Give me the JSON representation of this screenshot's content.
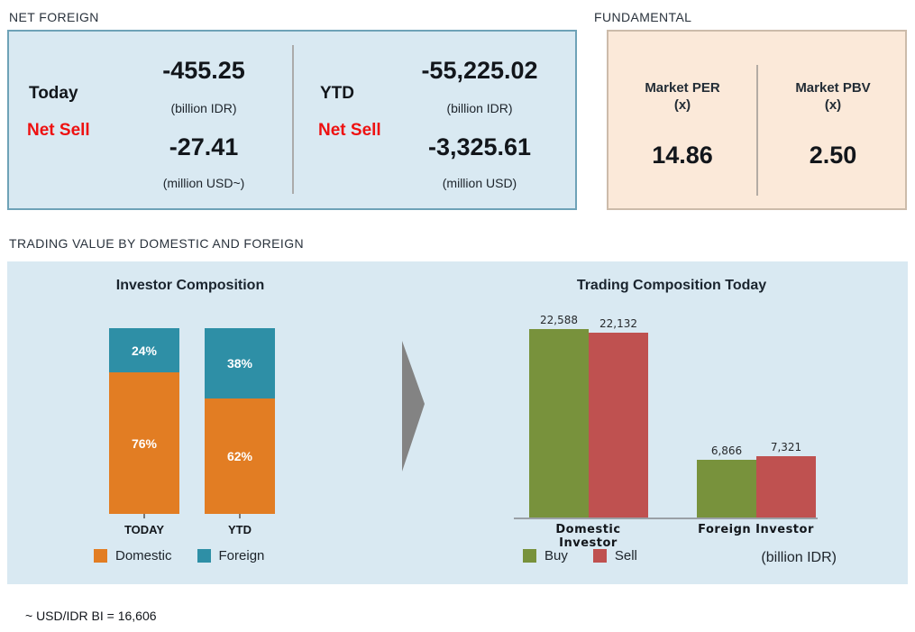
{
  "colors": {
    "panel_blue_bg": "#d9e9f2",
    "panel_blue_border": "#6ea2b7",
    "panel_peach_bg": "#fbe9d9",
    "panel_peach_border": "#ccbbaa",
    "net_sell_red": "#ee1111",
    "domestic_orange": "#e27d23",
    "foreign_teal": "#2e8fa6",
    "buy_green": "#78923c",
    "sell_red": "#bf5150",
    "arrow_gray": "#838383"
  },
  "net_foreign": {
    "section_title": "NET FOREIGN",
    "today": {
      "period_label": "Today",
      "direction_label": "Net Sell",
      "idr_value": "-455.25",
      "idr_unit": "(billion IDR)",
      "usd_value": "-27.41",
      "usd_unit": "(million USD~)"
    },
    "ytd": {
      "period_label": "YTD",
      "direction_label": "Net Sell",
      "idr_value": "-55,225.02",
      "idr_unit": "(billion IDR)",
      "usd_value": "-3,325.61",
      "usd_unit": "(million USD)"
    }
  },
  "fundamental": {
    "section_title": "FUNDAMENTAL",
    "per": {
      "label": "Market PER",
      "unit": "(x)",
      "value": "14.86"
    },
    "pbv": {
      "label": "Market PBV",
      "unit": "(x)",
      "value": "2.50"
    }
  },
  "trading": {
    "section_title": "TRADING VALUE BY DOMESTIC AND FOREIGN",
    "footnote": "~ USD/IDR BI = 16,606"
  },
  "chart_data": [
    {
      "type": "bar",
      "subtype": "stacked-percent",
      "title": "Investor Composition",
      "categories": [
        "TODAY",
        "YTD"
      ],
      "series": [
        {
          "name": "Domestic",
          "color": "#e27d23",
          "values": [
            76,
            62
          ]
        },
        {
          "name": "Foreign",
          "color": "#2e8fa6",
          "values": [
            24,
            38
          ]
        }
      ],
      "value_labels": [
        [
          "76%",
          "62%"
        ],
        [
          "24%",
          "38%"
        ]
      ],
      "ylim": [
        0,
        100
      ],
      "legend_position": "bottom",
      "grid": false
    },
    {
      "type": "bar",
      "subtype": "grouped",
      "title": "Trading Composition Today",
      "categories": [
        "Domestic Investor",
        "Foreign Investor"
      ],
      "series": [
        {
          "name": "Buy",
          "color": "#78923c",
          "values": [
            22588,
            6866
          ]
        },
        {
          "name": "Sell",
          "color": "#bf5150",
          "values": [
            22132,
            7321
          ]
        }
      ],
      "value_labels": [
        [
          "22,588",
          "6,866"
        ],
        [
          "22,132",
          "7,321"
        ]
      ],
      "unit_label": "(billion IDR)",
      "ylim": [
        0,
        24000
      ],
      "legend_position": "bottom",
      "grid": false
    }
  ]
}
